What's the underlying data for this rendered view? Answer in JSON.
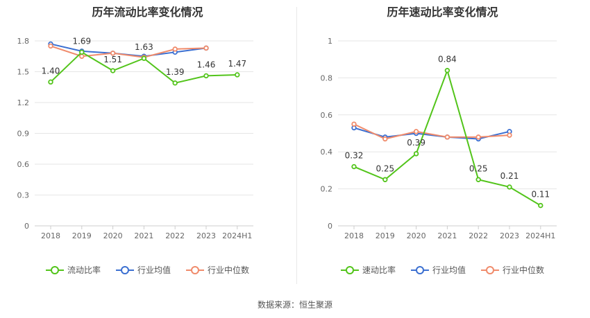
{
  "footer": "数据来源：恒生聚源",
  "chart_data": [
    {
      "type": "line",
      "title": "历年流动比率变化情况",
      "categories": [
        "2018",
        "2019",
        "2020",
        "2021",
        "2022",
        "2023",
        "2024H1"
      ],
      "yticks": [
        "0",
        "0.3",
        "0.6",
        "0.9",
        "1.2",
        "1.5",
        "1.8"
      ],
      "ylim": [
        0,
        1.8
      ],
      "grid": true,
      "legend_position": "bottom",
      "series": [
        {
          "name": "流动比率",
          "color": "#52c41a",
          "values": [
            1.4,
            1.69,
            1.51,
            1.63,
            1.39,
            1.46,
            1.47
          ],
          "labels": [
            "1.40",
            "1.69",
            "1.51",
            "1.63",
            "1.39",
            "1.46",
            "1.47"
          ]
        },
        {
          "name": "行业均值",
          "color": "#3b6fd1",
          "values": [
            1.77,
            1.7,
            1.68,
            1.65,
            1.69,
            1.73,
            null
          ]
        },
        {
          "name": "行业中位数",
          "color": "#f08b6b",
          "values": [
            1.75,
            1.65,
            1.68,
            1.64,
            1.72,
            1.73,
            null
          ]
        }
      ]
    },
    {
      "type": "line",
      "title": "历年速动比率变化情况",
      "categories": [
        "2018",
        "2019",
        "2020",
        "2021",
        "2022",
        "2023",
        "2024H1"
      ],
      "yticks": [
        "0",
        "0.2",
        "0.4",
        "0.6",
        "0.8",
        "1"
      ],
      "ylim": [
        0,
        1
      ],
      "grid": true,
      "legend_position": "bottom",
      "series": [
        {
          "name": "速动比率",
          "color": "#52c41a",
          "values": [
            0.32,
            0.25,
            0.39,
            0.84,
            0.25,
            0.21,
            0.11
          ],
          "labels": [
            "0.32",
            "0.25",
            "0.39",
            "0.84",
            "0.25",
            "0.21",
            "0.11"
          ]
        },
        {
          "name": "行业均值",
          "color": "#3b6fd1",
          "values": [
            0.53,
            0.48,
            0.5,
            0.48,
            0.47,
            0.51,
            null
          ]
        },
        {
          "name": "行业中位数",
          "color": "#f08b6b",
          "values": [
            0.55,
            0.47,
            0.51,
            0.48,
            0.48,
            0.49,
            null
          ]
        }
      ]
    }
  ]
}
